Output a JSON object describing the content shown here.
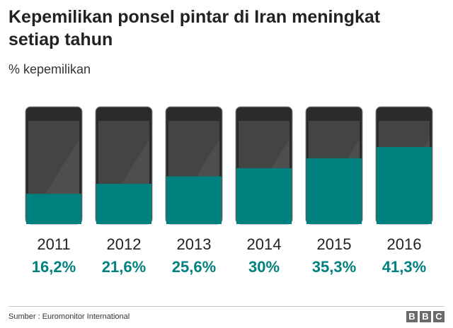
{
  "title": "Kepemilikan ponsel pintar di Iran meningkat setiap tahun",
  "subtitle": "% kepemilikan",
  "source": "Sumber : Euromonitor International",
  "logo": [
    "B",
    "B",
    "C"
  ],
  "colors": {
    "accent": "#00807f",
    "phone_body": "#2b2b2b",
    "screen": "#444444",
    "screen_glare": "#4e4e4e",
    "frame": "#8c8c8c"
  },
  "chart_data": {
    "type": "bar",
    "title": "Kepemilikan ponsel pintar di Iran meningkat setiap tahun",
    "ylabel": "% kepemilikan",
    "xlabel": "",
    "ylim": [
      0,
      100
    ],
    "categories": [
      "2011",
      "2012",
      "2013",
      "2014",
      "2015",
      "2016"
    ],
    "values": [
      16.2,
      21.6,
      25.6,
      30,
      35.3,
      41.3
    ],
    "value_labels": [
      "16,2%",
      "21,6%",
      "25,6%",
      "30%",
      "35,3%",
      "41,3%"
    ]
  }
}
